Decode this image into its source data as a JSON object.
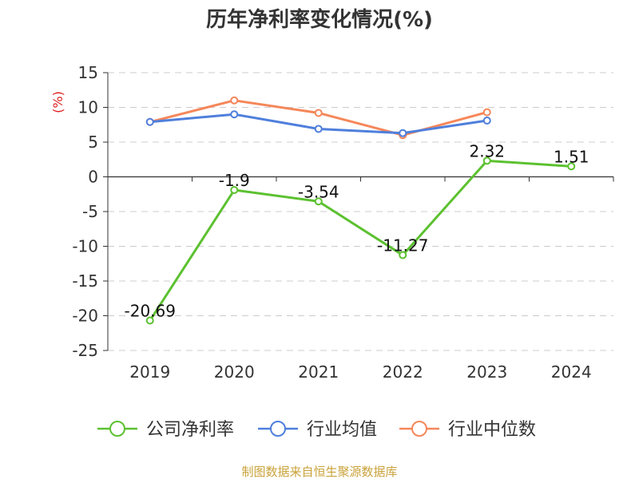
{
  "chart_data": {
    "type": "line",
    "title": "历年净利率变化情况(%)",
    "ylabel": "(%)",
    "categories": [
      "2019",
      "2020",
      "2021",
      "2022",
      "2023",
      "2024"
    ],
    "ylim": [
      -25,
      15
    ],
    "yticks": [
      15,
      10,
      5,
      0,
      -5,
      -10,
      -15,
      -20,
      -25
    ],
    "grid": true,
    "legend_position": "bottom",
    "series": [
      {
        "name": "公司净利率",
        "color": "#5cc130",
        "values": [
          -20.69,
          -1.9,
          -3.54,
          -11.27,
          2.32,
          1.51
        ],
        "labels": [
          "-20.69",
          "-1.9",
          "-3.54",
          "-11.27",
          "2.32",
          "1.51"
        ]
      },
      {
        "name": "行业均值",
        "color": "#4f7fdc",
        "values": [
          7.9,
          9.0,
          6.9,
          6.3,
          8.1,
          null
        ]
      },
      {
        "name": "行业中位数",
        "color": "#f5875a",
        "values": [
          7.9,
          11.0,
          9.2,
          6.0,
          9.3,
          null
        ]
      }
    ]
  },
  "source_note": "制图数据来自恒生聚源数据库"
}
